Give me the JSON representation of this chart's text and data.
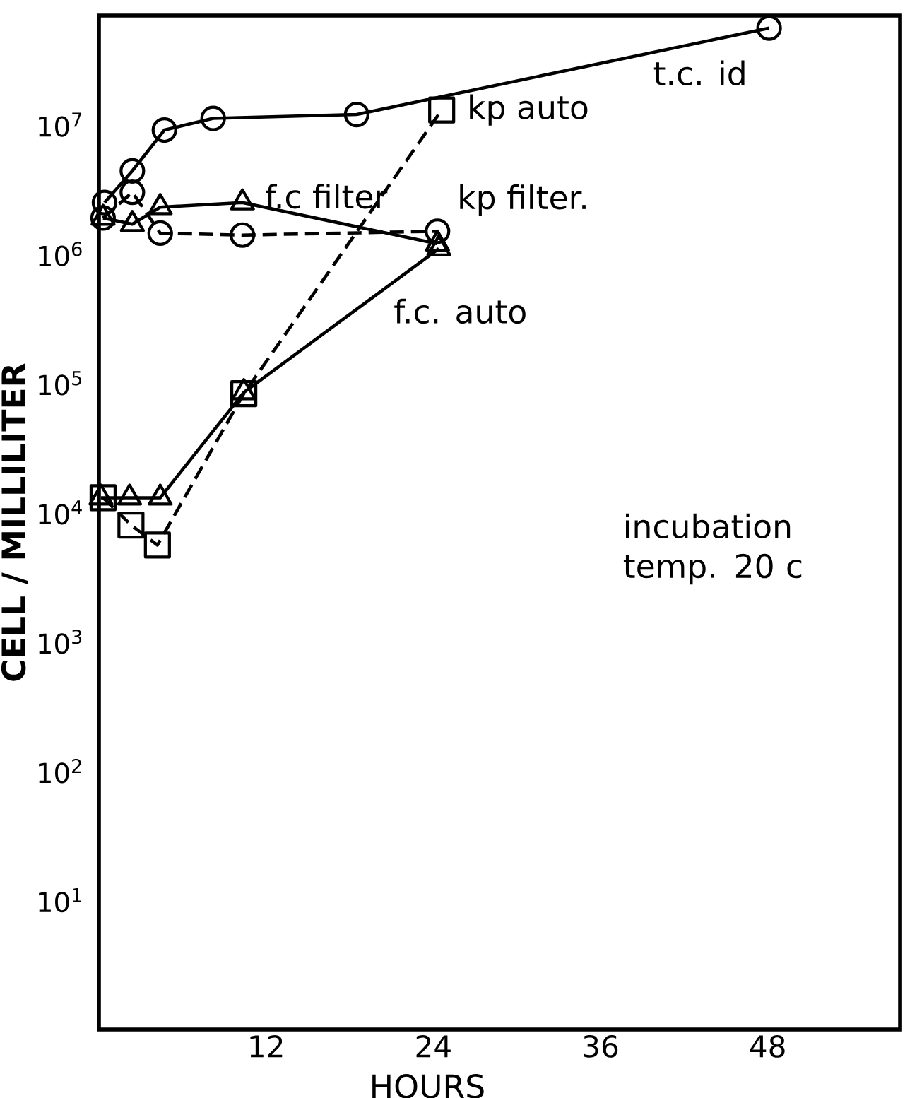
{
  "chart_data": {
    "type": "line",
    "xlabel": "HOURS",
    "ylabel": "CELL / MILLILITER",
    "log": "y",
    "grid": false,
    "legend": false,
    "xlim": [
      0,
      57.5
    ],
    "ylim": [
      1,
      70000000
    ],
    "xticks": [
      12,
      24,
      36,
      48
    ],
    "yticks": [
      {
        "value": 10,
        "label": "10$^{1}$"
      },
      {
        "value": 100,
        "label": "10$^{2}$"
      },
      {
        "value": 1000,
        "label": "10$^{3}$"
      },
      {
        "value": 10000,
        "label": "10$^{4}$"
      },
      {
        "value": 100000,
        "label": "10$^{5}$"
      },
      {
        "value": 1000000,
        "label": "10$^{6}$"
      },
      {
        "value": 10000000,
        "label": "10$^{7}$"
      }
    ],
    "annotations": [
      "incubation temp. 20 c"
    ],
    "series": [
      {
        "name": "t.c. id",
        "color": "#000000",
        "marker": "circle",
        "line_style": "solid",
        "x": [
          0.4,
          2.4,
          4.7,
          8.2,
          18.5,
          48.1
        ],
        "values": [
          2500000,
          4400000,
          9100000,
          11200000,
          12000000,
          56000000
        ]
      },
      {
        "name": "kp auto",
        "color": "#000000",
        "marker": "square",
        "line_style": "dashed",
        "x": [
          0.3,
          2.3,
          4.2,
          10.4,
          24.6
        ],
        "values": [
          13000,
          8000,
          5600,
          83000,
          13000000
        ]
      },
      {
        "name": "f.c filter",
        "color": "#000000",
        "marker": "triangle",
        "line_style": "solid",
        "x": [
          0.3,
          2.4,
          4.4,
          10.3,
          24.3
        ],
        "values": [
          1900000,
          1700000,
          2300000,
          2500000,
          1200000
        ]
      },
      {
        "name": "kp filter.",
        "color": "#000000",
        "marker": "circle",
        "line_style": "dashed",
        "x": [
          0.3,
          2.4,
          4.4,
          10.3,
          24.3
        ],
        "values": [
          1900000,
          3000000,
          1450000,
          1400000,
          1500000
        ]
      },
      {
        "name": "f.c. auto",
        "color": "#000000",
        "marker": "triangle",
        "line_style": "solid",
        "x": [
          0.15,
          2.2,
          4.4,
          10.4,
          24.4
        ],
        "values": [
          13000,
          13000,
          13000,
          85000,
          1100000
        ]
      }
    ]
  }
}
